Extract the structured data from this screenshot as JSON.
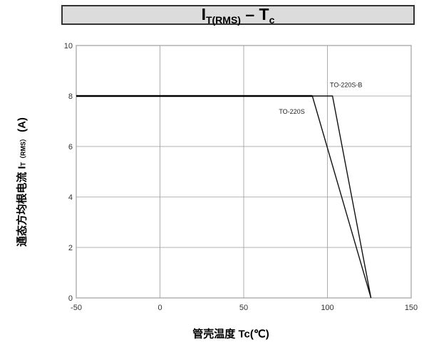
{
  "chart_data": {
    "type": "line",
    "title": {
      "main": "I",
      "main_sub": "T(RMS)",
      "dash": " – ",
      "second": "T",
      "second_sub": "c"
    },
    "ylabel": {
      "prefix": "通态方均根电流 I",
      "sub": "T（RMS）",
      "suffix": " (A)"
    },
    "xlabel": "管壳温度 Tc(℃)",
    "xlim": [
      -50,
      150
    ],
    "ylim": [
      0,
      10
    ],
    "xticks": [
      -50,
      0,
      50,
      100,
      150
    ],
    "yticks": [
      0,
      2,
      4,
      6,
      8,
      10
    ],
    "grid": true,
    "series": [
      {
        "name": "TO-220S",
        "x": [
          -50,
          91,
          126
        ],
        "y": [
          8,
          8,
          0
        ]
      },
      {
        "name": "TO-220S-B",
        "x": [
          -50,
          103,
          126
        ],
        "y": [
          8,
          8,
          0
        ]
      }
    ],
    "annotations": [
      {
        "text": "TO-220S-B",
        "x": 101.5,
        "y": 8.35
      },
      {
        "text": "TO-220S",
        "x": 71,
        "y": 7.3
      }
    ]
  }
}
